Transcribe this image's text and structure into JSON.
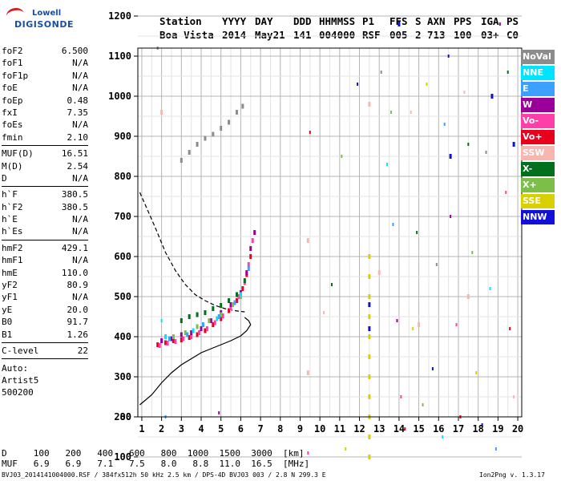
{
  "logo": {
    "line1": "Lowell",
    "line2": "DIGISONDE"
  },
  "header": {
    "columns": [
      {
        "label": "Station",
        "value": "Boa Vista"
      },
      {
        "label": "YYYY",
        "value": "2014"
      },
      {
        "label": "DAY",
        "value": "May21"
      },
      {
        "label": "DDD",
        "value": "141"
      },
      {
        "label": "HHMMSS",
        "value": "004000"
      },
      {
        "label": "P1",
        "value": "RSF"
      },
      {
        "label": "FFS",
        "value": "005"
      },
      {
        "label": "S",
        "value": "2"
      },
      {
        "label": "AXN",
        "value": "713"
      },
      {
        "label": "PPS",
        "value": "100"
      },
      {
        "label": "IGA",
        "value": "03+"
      },
      {
        "label": "PS",
        "value": "C0"
      }
    ]
  },
  "params": {
    "group1": [
      {
        "name": "foF2",
        "value": "6.500"
      },
      {
        "name": "foF1",
        "value": "N/A"
      },
      {
        "name": "foF1p",
        "value": "N/A"
      },
      {
        "name": "foE",
        "value": "N/A"
      },
      {
        "name": "foEp",
        "value": "0.48"
      },
      {
        "name": "fxI",
        "value": "7.35"
      },
      {
        "name": "foEs",
        "value": "N/A"
      },
      {
        "name": "fmin",
        "value": "2.10"
      }
    ],
    "group2": [
      {
        "name": "MUF(D)",
        "value": "16.51"
      },
      {
        "name": "M(D)",
        "value": "2.54"
      },
      {
        "name": "D",
        "value": "N/A"
      }
    ],
    "group3": [
      {
        "name": "h`F",
        "value": "380.5"
      },
      {
        "name": "h`F2",
        "value": "380.5"
      },
      {
        "name": "h`E",
        "value": "N/A"
      },
      {
        "name": "h`Es",
        "value": "N/A"
      }
    ],
    "group4": [
      {
        "name": "hmF2",
        "value": "429.1"
      },
      {
        "name": "hmF1",
        "value": "N/A"
      },
      {
        "name": "hmE",
        "value": "110.0"
      },
      {
        "name": "yF2",
        "value": "80.9"
      },
      {
        "name": "yF1",
        "value": "N/A"
      },
      {
        "name": "yE",
        "value": "20.0"
      },
      {
        "name": "B0",
        "value": "91.7"
      },
      {
        "name": "B1",
        "value": "1.26"
      }
    ],
    "group5": [
      {
        "name": "C-level",
        "value": "22"
      }
    ],
    "auto": [
      "Auto:",
      "Artist5",
      "500200"
    ]
  },
  "legend": [
    {
      "label": "NoVal",
      "color": "#8c8c8c"
    },
    {
      "label": "NNE",
      "color": "#00e5ff"
    },
    {
      "label": "E",
      "color": "#3ba0ff"
    },
    {
      "label": "W",
      "color": "#9a0099"
    },
    {
      "label": "Vo-",
      "color": "#ff3fa9"
    },
    {
      "label": "Vo+",
      "color": "#e8001c"
    },
    {
      "label": "SSW",
      "color": "#f8b6b0"
    },
    {
      "label": "X-",
      "color": "#00701c"
    },
    {
      "label": "X+",
      "color": "#7dbe48"
    },
    {
      "label": "SSE",
      "color": "#d8d000"
    },
    {
      "label": "NNW",
      "color": "#1010d8"
    }
  ],
  "table": {
    "row1": "D     100   200   400   600   800  1000  1500  3000  [km]",
    "row2": "MUF   6.9   6.9   7.1   7.5   8.0   8.8  11.0  16.5  [MHz]"
  },
  "footer": {
    "left": "BVJ03_2014141004000.RSF / 384fx512h 50 kHz 2.5 km / DPS-4D BVJ03 003 / 2.8 N 299.3 E",
    "right": "Ion2Png v. 1.3.17"
  },
  "chart_data": {
    "type": "scatter",
    "xlim": [
      1,
      20
    ],
    "ylim": [
      80,
      1200
    ],
    "x_ticks": [
      "1",
      "2",
      "3",
      "4",
      "5",
      "6",
      "7",
      "8",
      "9",
      "10",
      "11",
      "12",
      "13",
      "14",
      "15",
      "16",
      "17",
      "18",
      "19",
      "20"
    ],
    "y_ticks": [
      "80",
      "100",
      "200",
      "300",
      "400",
      "500",
      "600",
      "700",
      "800",
      "900",
      "1000",
      "1100",
      "1200"
    ],
    "grid": true,
    "legend_position": "right",
    "series": [
      {
        "name": "Vo+",
        "color": "#e8001c",
        "points": [
          [
            1.8,
            380
          ],
          [
            2.2,
            385
          ],
          [
            2.6,
            390
          ],
          [
            3.0,
            392
          ],
          [
            3.4,
            398
          ],
          [
            3.8,
            405
          ],
          [
            4.2,
            415
          ],
          [
            4.6,
            430
          ],
          [
            5.0,
            445
          ],
          [
            5.4,
            465
          ],
          [
            5.8,
            490
          ],
          [
            6.1,
            520
          ],
          [
            6.3,
            555
          ],
          [
            6.5,
            600
          ]
        ]
      },
      {
        "name": "Vo-",
        "color": "#ff3fa9",
        "points": [
          [
            1.9,
            378
          ],
          [
            2.3,
            384
          ],
          [
            2.7,
            388
          ],
          [
            3.1,
            395
          ],
          [
            3.5,
            400
          ],
          [
            3.9,
            410
          ],
          [
            4.3,
            420
          ],
          [
            4.7,
            435
          ],
          [
            5.1,
            452
          ],
          [
            5.5,
            472
          ],
          [
            5.9,
            500
          ],
          [
            6.2,
            535
          ],
          [
            6.4,
            580
          ],
          [
            6.6,
            640
          ]
        ]
      },
      {
        "name": "W",
        "color": "#9a0099",
        "points": [
          [
            2.0,
            390
          ],
          [
            2.5,
            395
          ],
          [
            3.0,
            405
          ],
          [
            3.5,
            410
          ],
          [
            4.0,
            420
          ],
          [
            4.5,
            440
          ],
          [
            5.0,
            460
          ],
          [
            5.5,
            480
          ],
          [
            6.0,
            510
          ],
          [
            6.3,
            560
          ],
          [
            6.5,
            620
          ],
          [
            6.7,
            660
          ]
        ]
      },
      {
        "name": "X-",
        "color": "#00701c",
        "points": [
          [
            3.0,
            440
          ],
          [
            3.4,
            450
          ],
          [
            3.8,
            455
          ],
          [
            4.2,
            460
          ],
          [
            4.6,
            470
          ],
          [
            5.0,
            478
          ],
          [
            5.4,
            490
          ],
          [
            5.8,
            505
          ],
          [
            6.2,
            540
          ]
        ]
      },
      {
        "name": "X+",
        "color": "#7dbe48",
        "points": [
          [
            2.6,
            400
          ],
          [
            3.2,
            410
          ],
          [
            3.8,
            425
          ],
          [
            4.4,
            440
          ],
          [
            5.0,
            455
          ],
          [
            5.6,
            480
          ],
          [
            6.0,
            500
          ]
        ]
      },
      {
        "name": "E",
        "color": "#3ba0ff",
        "points": [
          [
            2.4,
            395
          ],
          [
            3.3,
            405
          ],
          [
            4.1,
            430
          ],
          [
            4.9,
            450
          ],
          [
            5.7,
            485
          ],
          [
            6.4,
            570
          ]
        ]
      },
      {
        "name": "NNE",
        "color": "#00e5ff",
        "points": [
          [
            2.2,
            400
          ],
          [
            3.6,
            415
          ],
          [
            4.8,
            445
          ],
          [
            6.0,
            505
          ]
        ]
      },
      {
        "name": "NoVal",
        "color": "#8c8c8c",
        "points": [
          [
            3.0,
            840
          ],
          [
            3.4,
            860
          ],
          [
            3.8,
            880
          ],
          [
            4.2,
            895
          ],
          [
            4.6,
            905
          ],
          [
            5.0,
            920
          ],
          [
            5.4,
            935
          ],
          [
            5.8,
            960
          ],
          [
            6.1,
            975
          ]
        ]
      },
      {
        "name": "SSE",
        "color": "#d8d000",
        "points": [
          [
            12.5,
            100
          ],
          [
            12.5,
            150
          ],
          [
            12.5,
            200
          ],
          [
            12.5,
            250
          ],
          [
            12.5,
            300
          ],
          [
            12.5,
            350
          ],
          [
            12.5,
            400
          ],
          [
            12.5,
            450
          ],
          [
            12.5,
            500
          ],
          [
            12.5,
            550
          ],
          [
            12.5,
            600
          ]
        ]
      },
      {
        "name": "NNW",
        "color": "#1010d8",
        "points": [
          [
            12.5,
            420
          ],
          [
            12.5,
            480
          ],
          [
            14.0,
            1180
          ],
          [
            16.6,
            850
          ],
          [
            18.7,
            1000
          ],
          [
            19.8,
            880
          ]
        ]
      },
      {
        "name": "SSW",
        "color": "#f8b6b0",
        "points": [
          [
            2.0,
            960
          ],
          [
            9.4,
            640
          ],
          [
            9.4,
            310
          ],
          [
            12.5,
            980
          ],
          [
            13.0,
            560
          ],
          [
            15.0,
            430
          ],
          [
            17.5,
            500
          ]
        ]
      }
    ],
    "noise": [
      [
        1.8,
        1120
      ],
      [
        2.0,
        440
      ],
      [
        2.2,
        200
      ],
      [
        4.9,
        90
      ],
      [
        9.4,
        110
      ],
      [
        9.5,
        910
      ],
      [
        10.2,
        460
      ],
      [
        10.6,
        530
      ],
      [
        11.1,
        850
      ],
      [
        11.3,
        120
      ],
      [
        11.9,
        1030
      ],
      [
        13.1,
        1060
      ],
      [
        13.4,
        830
      ],
      [
        13.7,
        680
      ],
      [
        13.9,
        440
      ],
      [
        14.1,
        250
      ],
      [
        14.3,
        170
      ],
      [
        14.6,
        960
      ],
      [
        14.9,
        660
      ],
      [
        15.2,
        230
      ],
      [
        15.4,
        1030
      ],
      [
        15.7,
        320
      ],
      [
        15.9,
        580
      ],
      [
        16.2,
        150
      ],
      [
        16.3,
        930
      ],
      [
        16.6,
        700
      ],
      [
        16.9,
        430
      ],
      [
        17.1,
        200
      ],
      [
        17.3,
        1010
      ],
      [
        17.5,
        880
      ],
      [
        17.7,
        610
      ],
      [
        17.9,
        310
      ],
      [
        18.2,
        180
      ],
      [
        18.4,
        860
      ],
      [
        18.6,
        520
      ],
      [
        18.9,
        120
      ],
      [
        19.1,
        1180
      ],
      [
        19.4,
        760
      ],
      [
        19.6,
        420
      ],
      [
        19.8,
        250
      ],
      [
        19.5,
        1060
      ],
      [
        13.6,
        960
      ],
      [
        14.7,
        420
      ],
      [
        16.5,
        1100
      ]
    ],
    "profile": [
      [
        0.9,
        230
      ],
      [
        1.5,
        255
      ],
      [
        2.0,
        285
      ],
      [
        2.5,
        310
      ],
      [
        3.0,
        330
      ],
      [
        3.5,
        345
      ],
      [
        4.0,
        360
      ],
      [
        4.5,
        370
      ],
      [
        5.0,
        380
      ],
      [
        5.5,
        390
      ],
      [
        6.0,
        402
      ],
      [
        6.3,
        415
      ],
      [
        6.5,
        430
      ],
      [
        6.4,
        440
      ],
      [
        6.2,
        448
      ]
    ],
    "dashed": [
      [
        0.9,
        760
      ],
      [
        1.3,
        715
      ],
      [
        1.7,
        670
      ],
      [
        2.2,
        610
      ],
      [
        2.7,
        565
      ],
      [
        3.2,
        530
      ],
      [
        3.7,
        505
      ],
      [
        4.2,
        490
      ],
      [
        4.7,
        478
      ],
      [
        5.2,
        470
      ],
      [
        5.7,
        465
      ],
      [
        6.2,
        462
      ]
    ]
  }
}
